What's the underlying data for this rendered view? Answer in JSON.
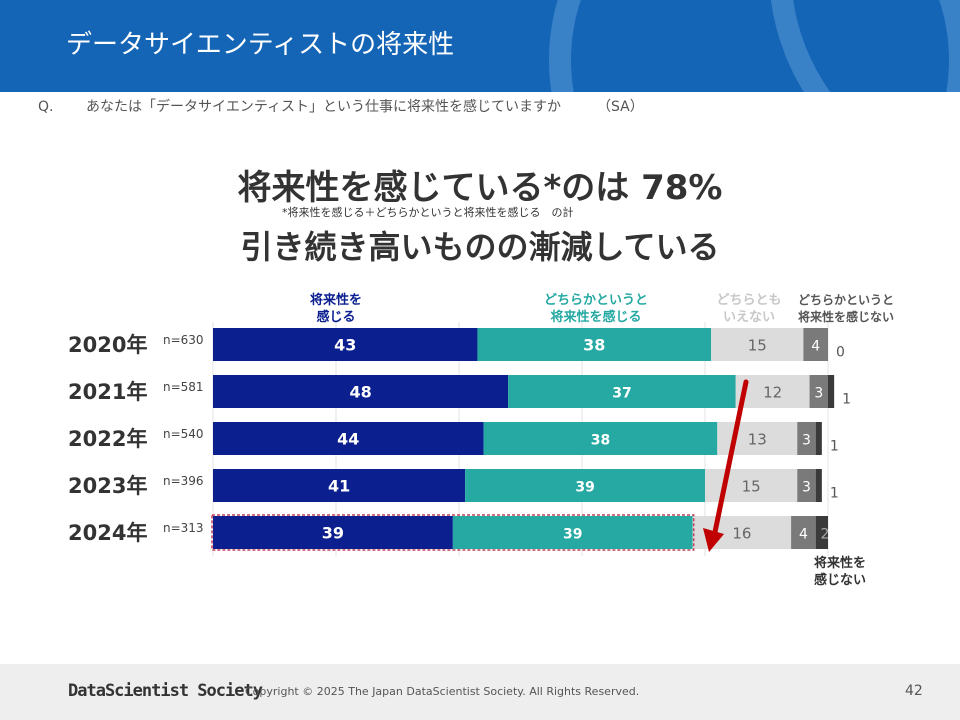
{
  "header": {
    "title": "データサイエンティストの将来性"
  },
  "question": {
    "label": "Q.",
    "text": "あなたは「データサイエンティスト」という仕事に将来性を感じていますか",
    "type": "（SA）"
  },
  "headline": {
    "line1": "将来性を感じている*のは 78%",
    "note": "*将来性を感じる＋どちらかというと将来性を感じる　の計",
    "line2": "引き続き高いものの漸減している"
  },
  "colors": {
    "header_bg": "#1565b6",
    "strong": "#0b1f8f",
    "somewhat": "#26a9a3",
    "neutral": "#dcdcdc",
    "somewhat_not": "#7a7a7a",
    "not": "#3a3a3a",
    "arrow": "#c00000"
  },
  "chart_data": {
    "type": "bar",
    "orientation": "horizontal-stacked-100",
    "categories": [
      "2020年",
      "2021年",
      "2022年",
      "2023年",
      "2024年"
    ],
    "sample_sizes": [
      "n=630",
      "n=581",
      "n=540",
      "n=396",
      "n=313"
    ],
    "series": [
      {
        "name": "将来性を感じる",
        "legend_lines": [
          "将来性を",
          "感じる"
        ],
        "values": [
          43,
          48,
          44,
          41,
          39
        ]
      },
      {
        "name": "どちらかというと将来性を感じる",
        "legend_lines": [
          "どちらかというと",
          "将来性を感じる"
        ],
        "values": [
          38,
          37,
          38,
          39,
          39
        ]
      },
      {
        "name": "どちらともいえない",
        "legend_lines": [
          "どちらとも",
          "いえない"
        ],
        "values": [
          15,
          12,
          13,
          15,
          16
        ]
      },
      {
        "name": "どちらかというと将来性を感じない",
        "legend_lines": [
          "どちらかというと",
          "将来性を感じない"
        ],
        "values": [
          4,
          3,
          3,
          3,
          4
        ]
      },
      {
        "name": "将来性を感じない",
        "legend_lines": [
          "将来性を",
          "感じない"
        ],
        "values": [
          0,
          1,
          1,
          1,
          2
        ]
      }
    ],
    "xlim": [
      0,
      100
    ],
    "grid": true,
    "highlight_category": "2024年",
    "annotation": "downward arrow indicating decrease of positive share"
  },
  "footer": {
    "logo": "DataScientist Society",
    "copyright": "Copyright © 2025  The Japan DataScientist Society. All Rights Reserved.",
    "page": "42"
  }
}
